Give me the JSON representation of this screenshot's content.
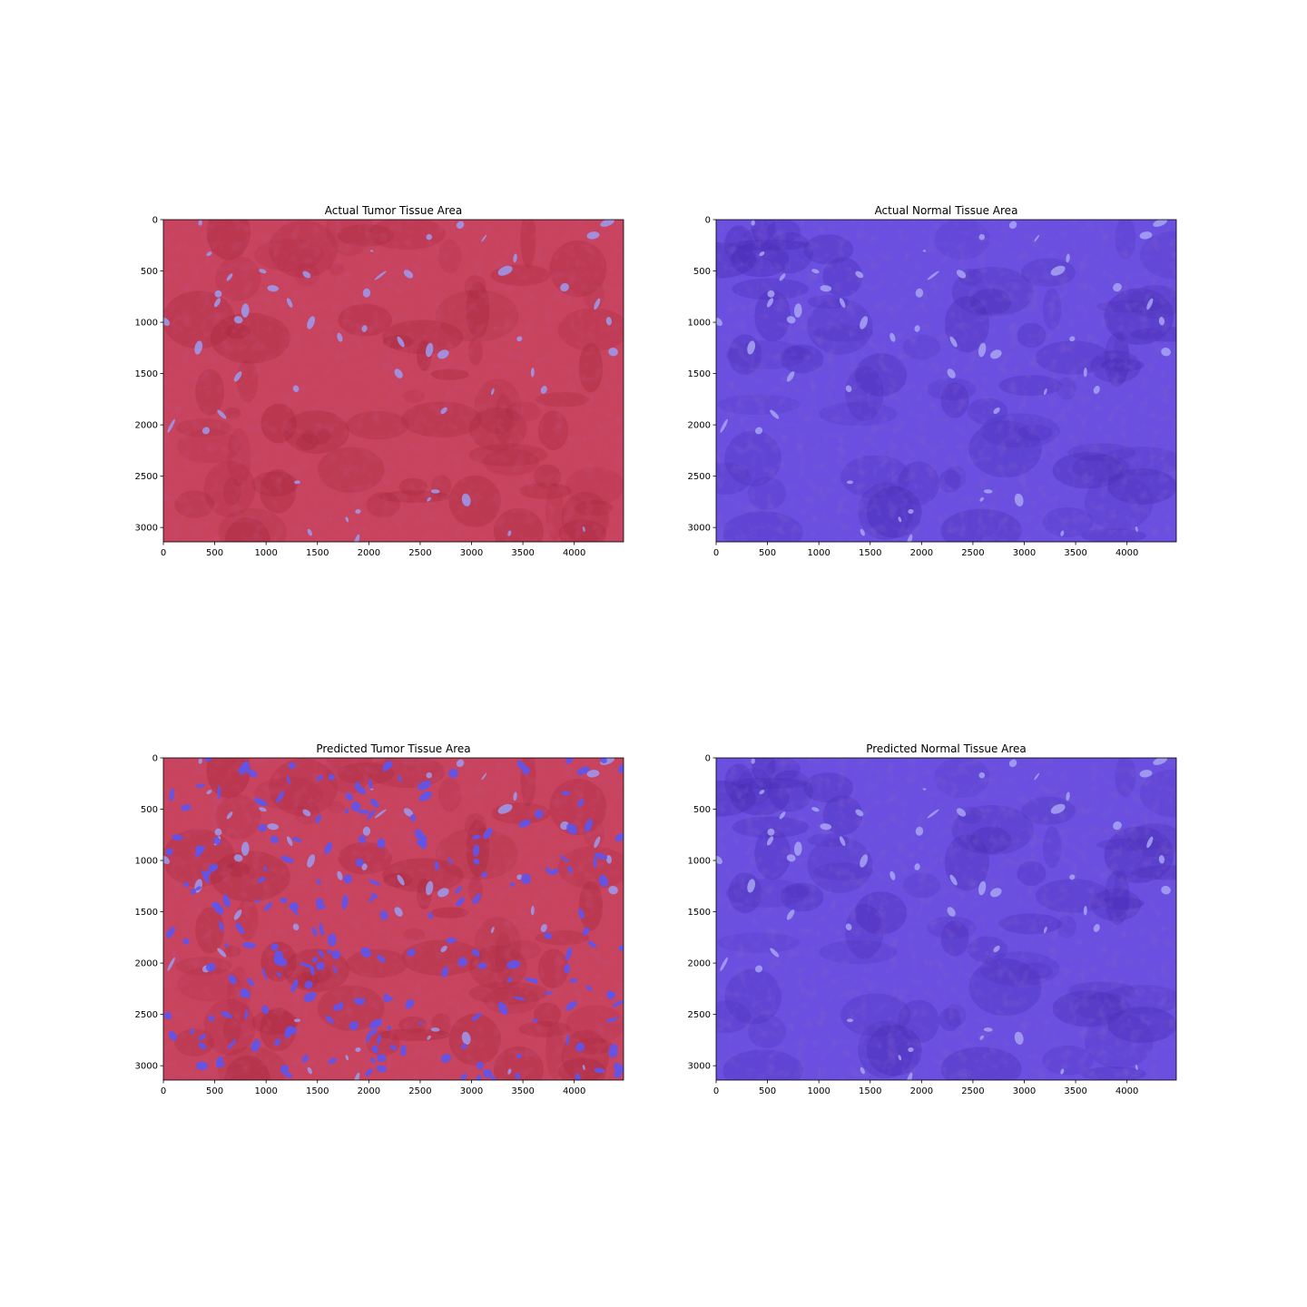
{
  "chart_data": [
    {
      "type": "heatmap",
      "title": "Actual Tumor Tissue Area",
      "image": "tissue overlay",
      "overlay_theme": "tumor",
      "xlim": [
        0,
        4480
      ],
      "ylim": [
        3140,
        0
      ],
      "xticks": [
        0,
        500,
        1000,
        1500,
        2000,
        2500,
        3000,
        3500,
        4000
      ],
      "yticks": [
        0,
        500,
        1000,
        1500,
        2000,
        2500,
        3000
      ],
      "colors": {
        "base": "#c8435e",
        "dark": "#a9293f",
        "highlight": "#9b9bf0"
      }
    },
    {
      "type": "heatmap",
      "title": "Actual Normal Tissue Area",
      "image": "tissue overlay",
      "overlay_theme": "normal",
      "xlim": [
        0,
        4480
      ],
      "ylim": [
        3140,
        0
      ],
      "xticks": [
        0,
        500,
        1000,
        1500,
        2000,
        2500,
        3000,
        3500,
        4000
      ],
      "yticks": [
        0,
        500,
        1000,
        1500,
        2000,
        2500,
        3000
      ],
      "colors": {
        "base": "#6a4fe0",
        "dark": "#4a2fb8",
        "highlight": "#a8a4f2"
      }
    },
    {
      "type": "heatmap",
      "title": "Predicted Tumor Tissue Area",
      "image": "tissue overlay",
      "overlay_theme": "predicted-tumor",
      "xlim": [
        0,
        4480
      ],
      "ylim": [
        3140,
        0
      ],
      "xticks": [
        0,
        500,
        1000,
        1500,
        2000,
        2500,
        3000,
        3500,
        4000
      ],
      "yticks": [
        0,
        500,
        1000,
        1500,
        2000,
        2500,
        3000
      ],
      "colors": {
        "base": "#c8435e",
        "dark": "#a9293f",
        "highlight": "#5d55ee"
      }
    },
    {
      "type": "heatmap",
      "title": "Predicted Normal Tissue Area",
      "image": "tissue overlay",
      "overlay_theme": "normal",
      "xlim": [
        0,
        4480
      ],
      "ylim": [
        3140,
        0
      ],
      "xticks": [
        0,
        500,
        1000,
        1500,
        2000,
        2500,
        3000,
        3500,
        4000
      ],
      "yticks": [
        0,
        500,
        1000,
        1500,
        2000,
        2500,
        3000
      ],
      "colors": {
        "base": "#6a4fe0",
        "dark": "#4a2fb8",
        "highlight": "#a8a4f2"
      }
    }
  ]
}
